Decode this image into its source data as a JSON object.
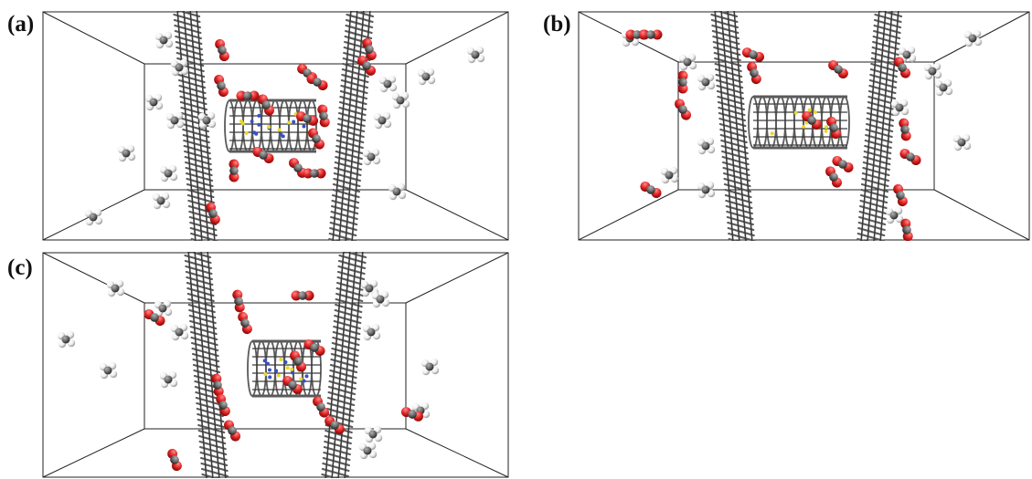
{
  "panels": [
    {
      "label": "(a)"
    },
    {
      "label": "(b)"
    },
    {
      "label": "(c)"
    }
  ],
  "colors": {
    "graphene": "#5a5a5a",
    "graphene_dark": "#3a3a3a",
    "oxygen": "#e32424",
    "carbon_atom": "#6e6e6e",
    "hydrogen": "#f0f0f0",
    "nitrogen": "#3a4fc8",
    "sulfur": "#e8d830",
    "box_edge": "#222222"
  }
}
